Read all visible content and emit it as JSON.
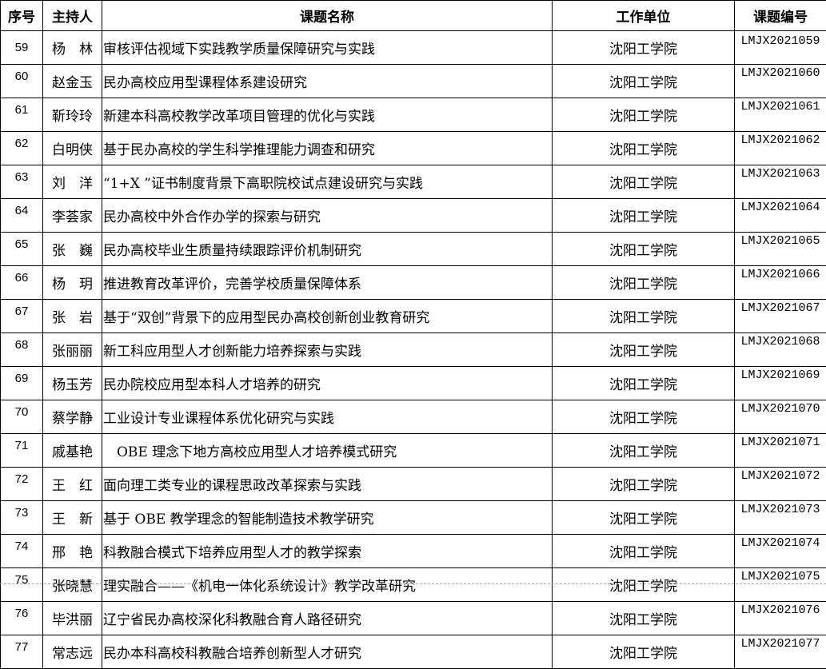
{
  "headers": [
    "序号",
    "主持人",
    "课题名称",
    "工作单位",
    "课题编号"
  ],
  "rows": [
    {
      "no": "59",
      "host": "杨　林",
      "title": "审核评估视域下实践教学质量保障研究与实践",
      "unit": "沈阳工学院",
      "code": "LMJX2021059"
    },
    {
      "no": "60",
      "host": "赵金玉",
      "title": "民办高校应用型课程体系建设研究",
      "unit": "沈阳工学院",
      "code": "LMJX2021060"
    },
    {
      "no": "61",
      "host": "靳玲玲",
      "title": "新建本科高校教学改革项目管理的优化与实践",
      "unit": "沈阳工学院",
      "code": "LMJX2021061"
    },
    {
      "no": "62",
      "host": "白明侠",
      "title": "基于民办高校的学生科学推理能力调查和研究",
      "unit": "沈阳工学院",
      "code": "LMJX2021062"
    },
    {
      "no": "63",
      "host": "刘　洋",
      "title": "“1+X ”证书制度背景下高职院校试点建设研究与实践",
      "unit": "沈阳工学院",
      "code": "LMJX2021063"
    },
    {
      "no": "64",
      "host": "李荟家",
      "title": "民办高校中外合作办学的探索与研究",
      "unit": "沈阳工学院",
      "code": "LMJX2021064"
    },
    {
      "no": "65",
      "host": "张　巍",
      "title": "民办高校毕业生质量持续跟踪评价机制研究",
      "unit": "沈阳工学院",
      "code": "LMJX2021065"
    },
    {
      "no": "66",
      "host": "杨　玥",
      "title": "推进教育改革评价，完善学校质量保障体系",
      "unit": "沈阳工学院",
      "code": "LMJX2021066"
    },
    {
      "no": "67",
      "host": "张　岩",
      "title": "基于“双创”背景下的应用型民办高校创新创业教育研究",
      "unit": "沈阳工学院",
      "code": "LMJX2021067"
    },
    {
      "no": "68",
      "host": "张丽丽",
      "title": "新工科应用型人才创新能力培养探索与实践",
      "unit": "沈阳工学院",
      "code": "LMJX2021068"
    },
    {
      "no": "69",
      "host": "杨玉芳",
      "title": "民办院校应用型本科人才培养的研究",
      "unit": "沈阳工学院",
      "code": "LMJX2021069"
    },
    {
      "no": "70",
      "host": "蔡学静",
      "title": "工业设计专业课程体系优化研究与实践",
      "unit": "沈阳工学院",
      "code": "LMJX2021070"
    },
    {
      "no": "71",
      "host": "戚基艳",
      "title": "　OBE 理念下地方高校应用型人才培养模式研究",
      "unit": "沈阳工学院",
      "code": "LMJX2021071"
    },
    {
      "no": "72",
      "host": "王　红",
      "title": "面向理工类专业的课程思政改革探索与实践",
      "unit": "沈阳工学院",
      "code": "LMJX2021072"
    },
    {
      "no": "73",
      "host": "王　新",
      "title": "基于 OBE 教学理念的智能制造技术教学研究",
      "unit": "沈阳工学院",
      "code": "LMJX2021073"
    },
    {
      "no": "74",
      "host": "邢　艳",
      "title": "科教融合模式下培养应用型人才的教学探索",
      "unit": "沈阳工学院",
      "code": "LMJX2021074"
    },
    {
      "no": "75",
      "host": "张晓慧",
      "title": "理实融合——《机电一体化系统设计》教学改革研究",
      "unit": "沈阳工学院",
      "code": "LMJX2021075"
    },
    {
      "no": "76",
      "host": "毕洪丽",
      "title": "辽宁省民办高校深化科教融合育人路径研究",
      "unit": "沈阳工学院",
      "code": "LMJX2021076"
    },
    {
      "no": "77",
      "host": "常志远",
      "title": "民办本科高校科教融合培养创新型人才研究",
      "unit": "沈阳工学院",
      "code": "LMJX2021077"
    }
  ]
}
